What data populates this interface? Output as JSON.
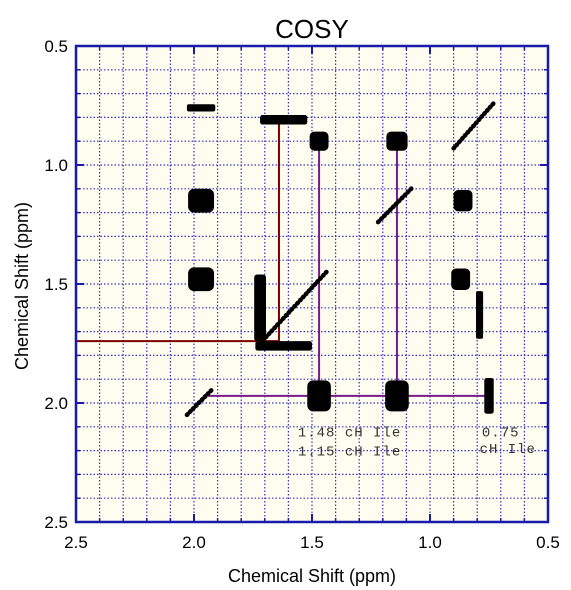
{
  "chart_data": {
    "type": "heatmap",
    "title": "COSY",
    "xlabel": "Chemical Shift (ppm)",
    "ylabel": "Chemical Shift (ppm)",
    "xlim": [
      2.5,
      0.5
    ],
    "ylim": [
      0.5,
      2.5
    ],
    "x_ticks": [
      "2.5",
      "2.0",
      "1.5",
      "1.0",
      "0.5"
    ],
    "y_ticks": [
      "0.5",
      "1.0",
      "1.5",
      "2.0",
      "2.5"
    ],
    "grid": true,
    "colors": {
      "plot_frame": "#1a1aa8",
      "grid": "#3333cc",
      "background": "#fffdf0",
      "peaks": "#000000",
      "guide_dark": "#7a0000",
      "guide_purple": "#7a1a8a"
    },
    "cross_peaks": [
      {
        "x": 1.97,
        "y": 0.76,
        "w": 0.12,
        "h": 0.03
      },
      {
        "x": 1.62,
        "y": 0.81,
        "w": 0.2,
        "h": 0.04
      },
      {
        "x": 1.47,
        "y": 0.9,
        "w": 0.08,
        "h": 0.08
      },
      {
        "x": 1.14,
        "y": 0.9,
        "w": 0.09,
        "h": 0.08
      },
      {
        "x": 1.97,
        "y": 1.15,
        "w": 0.11,
        "h": 0.1
      },
      {
        "x": 0.86,
        "y": 1.15,
        "w": 0.08,
        "h": 0.09
      },
      {
        "x": 1.97,
        "y": 1.48,
        "w": 0.11,
        "h": 0.1
      },
      {
        "x": 0.87,
        "y": 1.48,
        "w": 0.08,
        "h": 0.09
      },
      {
        "x": 0.79,
        "y": 1.63,
        "w": 0.03,
        "h": 0.2
      },
      {
        "x": 1.72,
        "y": 1.6,
        "w": 0.05,
        "h": 0.28
      },
      {
        "x": 1.62,
        "y": 1.76,
        "w": 0.24,
        "h": 0.04
      },
      {
        "x": 1.47,
        "y": 1.97,
        "w": 0.1,
        "h": 0.13
      },
      {
        "x": 1.14,
        "y": 1.97,
        "w": 0.1,
        "h": 0.13
      },
      {
        "x": 0.75,
        "y": 1.97,
        "w": 0.04,
        "h": 0.15
      }
    ],
    "diagonal_segments": [
      {
        "x1": 2.03,
        "y1": 2.05,
        "x2": 1.92,
        "y2": 1.94
      },
      {
        "x1": 1.72,
        "y1": 1.75,
        "x2": 1.43,
        "y2": 1.44
      },
      {
        "x1": 1.22,
        "y1": 1.24,
        "x2": 1.07,
        "y2": 1.09
      },
      {
        "x1": 0.9,
        "y1": 0.93,
        "x2": 0.73,
        "y2": 0.74
      }
    ],
    "guide_lines": [
      {
        "color": "dark",
        "x1": 2.5,
        "y1": 1.74,
        "x2": 1.64,
        "y2": 1.74
      },
      {
        "color": "dark",
        "x1": 1.64,
        "y1": 1.74,
        "x2": 1.64,
        "y2": 0.82
      },
      {
        "color": "purple",
        "x1": 1.94,
        "y1": 1.97,
        "x2": 0.75,
        "y2": 1.97
      },
      {
        "color": "purple",
        "x1": 1.47,
        "y1": 1.97,
        "x2": 1.47,
        "y2": 0.92
      },
      {
        "color": "purple",
        "x1": 1.14,
        "y1": 1.97,
        "x2": 1.14,
        "y2": 0.92
      }
    ],
    "annotations": [
      {
        "text": "1.48 cH Ile",
        "x": 1.56,
        "y": 2.14
      },
      {
        "text": "1.15 cH Ile",
        "x": 1.56,
        "y": 2.22
      },
      {
        "text": "0.75",
        "x": 0.78,
        "y": 2.14
      },
      {
        "text": "cH Ile",
        "x": 0.79,
        "y": 2.21
      }
    ]
  }
}
